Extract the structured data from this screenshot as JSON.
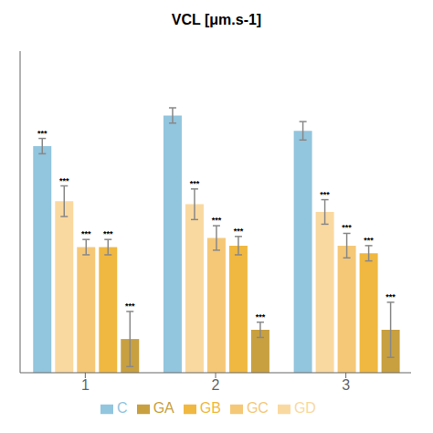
{
  "chart_data": {
    "type": "bar",
    "title": "VCL [μm.s-1]",
    "categories": [
      "1",
      "2",
      "3"
    ],
    "series": [
      {
        "name": "C",
        "color": "#92C5DE",
        "values": [
          148,
          168,
          158
        ],
        "errors": [
          5,
          5,
          6
        ]
      },
      {
        "name": "GD",
        "color": "#FAD9A0",
        "values": [
          112,
          110,
          105
        ],
        "errors": [
          10,
          10,
          8
        ]
      },
      {
        "name": "GC",
        "color": "#F5C878",
        "values": [
          82,
          88,
          83
        ],
        "errors": [
          5,
          8,
          8
        ]
      },
      {
        "name": "GB",
        "color": "#F0B840",
        "values": [
          82,
          83,
          78
        ],
        "errors": [
          5,
          6,
          5
        ]
      },
      {
        "name": "GA",
        "color": "#C8A040",
        "values": [
          22,
          28,
          28
        ],
        "errors": [
          18,
          5,
          18
        ]
      }
    ],
    "annotations": [
      {
        "category": "1",
        "series": "C",
        "text": "***"
      },
      {
        "category": "1",
        "series": "GD",
        "text": "***"
      },
      {
        "category": "1",
        "series": "GC",
        "text": "***"
      },
      {
        "category": "1",
        "series": "GB",
        "text": "***"
      },
      {
        "category": "1",
        "series": "GA",
        "text": "***"
      },
      {
        "category": "2",
        "series": "GD",
        "text": "***"
      },
      {
        "category": "2",
        "series": "GC",
        "text": "***"
      },
      {
        "category": "2",
        "series": "GB",
        "text": "***"
      },
      {
        "category": "2",
        "series": "GA",
        "text": "***"
      },
      {
        "category": "3",
        "series": "GD",
        "text": "***"
      },
      {
        "category": "3",
        "series": "GC",
        "text": "***"
      },
      {
        "category": "3",
        "series": "GB",
        "text": "***"
      },
      {
        "category": "3",
        "series": "GA",
        "text": "***"
      }
    ],
    "ylim": [
      0,
      210
    ],
    "grid": false,
    "legend": "bottom",
    "tick_labels": "x"
  }
}
